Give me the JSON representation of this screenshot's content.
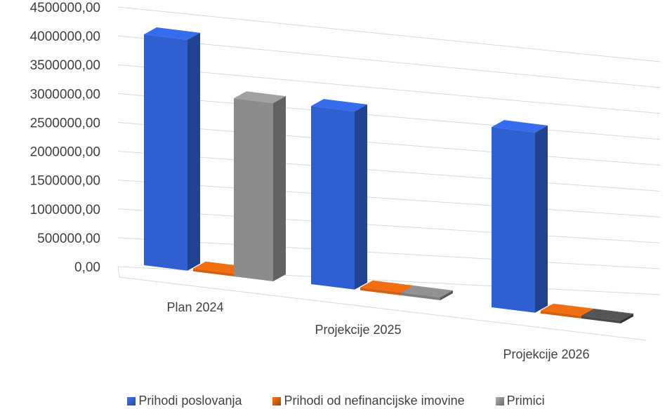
{
  "chart_data": {
    "type": "bar",
    "style": "3d-clustered-column",
    "categories": [
      "Plan 2024",
      "Projekcije 2025",
      "Projekcije 2026"
    ],
    "series": [
      {
        "name": "Prihodi poslovanja",
        "color": "#2F5FD0",
        "values": [
          4380000,
          3380000,
          3420000
        ]
      },
      {
        "name": "Prihodi od nefinancijske imovine",
        "color": "#D2600F",
        "values": [
          0,
          0,
          0
        ]
      },
      {
        "name": "Primici",
        "color": "#8C8C8C",
        "values": [
          3380000,
          0,
          0
        ]
      }
    ],
    "y_ticks": [
      "0,00",
      "500000,00",
      "1000000,00",
      "1500000,00",
      "2000000,00",
      "2500000,00",
      "3000000,00",
      "3500000,00",
      "4000000,00",
      "4500000,00"
    ],
    "ylim": [
      0,
      4500000
    ],
    "grid": true,
    "legend_position": "bottom"
  }
}
